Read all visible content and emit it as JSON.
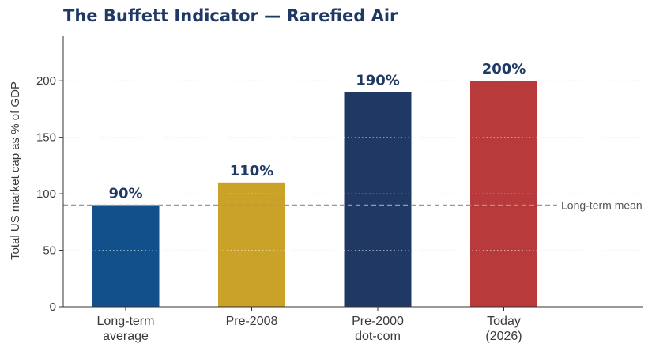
{
  "chart_data": {
    "type": "bar",
    "title": "The Buffett Indicator — Rarefied Air",
    "ylabel": "Total US market cap as % of GDP",
    "xlabel": "",
    "ylim": [
      0,
      240
    ],
    "yticks": [
      0,
      50,
      100,
      150,
      200
    ],
    "grid": true,
    "categories": [
      [
        "Long-term",
        "average"
      ],
      [
        "Pre-2008"
      ],
      [
        "Pre-2000",
        "dot-com"
      ],
      [
        "Today",
        "(2026)"
      ]
    ],
    "values": [
      90,
      110,
      190,
      200
    ],
    "data_labels": [
      "90%",
      "110%",
      "190%",
      "200%"
    ],
    "colors": [
      "#11508a",
      "#c9a227",
      "#203864",
      "#b83a3a"
    ],
    "reference_line": {
      "value": 90,
      "label": "Long-term mean",
      "color": "#999999"
    }
  }
}
